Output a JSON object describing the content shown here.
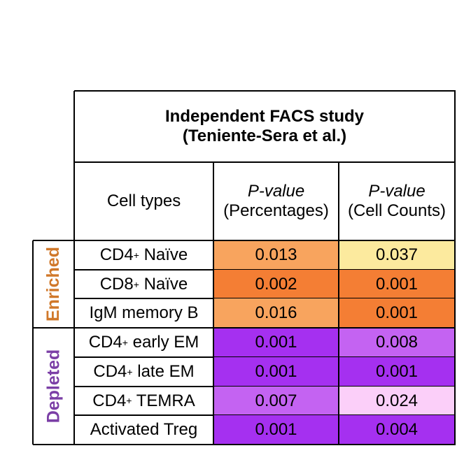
{
  "chart_data": {
    "type": "table",
    "title_line1": "Independent FACS study",
    "title_line2": "(Teniente-Sera et al.)",
    "columns": [
      {
        "key": "cell_types",
        "label": "Cell types"
      },
      {
        "key": "pct",
        "label_italic": "P-value",
        "label_sub": "(Percentages)"
      },
      {
        "key": "cnt",
        "label_italic": "P-value",
        "label_sub": "(Cell Counts)"
      }
    ],
    "groups": [
      {
        "label": "Enriched",
        "color": "#d0782a",
        "rows": [
          {
            "name": "CD4",
            "sup": "+",
            "rest": " Naïve",
            "pct": "0.013",
            "cnt": "0.037",
            "pct_color": "#f8a45e",
            "cnt_color": "#fcea9e"
          },
          {
            "name": "CD8",
            "sup": "+",
            "rest": " Naïve",
            "pct": "0.002",
            "cnt": "0.001",
            "pct_color": "#f47e34",
            "cnt_color": "#f47e34"
          },
          {
            "name": "IgM memory B",
            "sup": "",
            "rest": "",
            "pct": "0.016",
            "cnt": "0.001",
            "pct_color": "#f8a45e",
            "cnt_color": "#f47e34"
          }
        ]
      },
      {
        "label": "Depleted",
        "color": "#7b3fa6",
        "rows": [
          {
            "name": "CD4",
            "sup": "+",
            "rest": " early EM",
            "pct": "0.001",
            "cnt": "0.008",
            "pct_color": "#a530f0",
            "cnt_color": "#c463f2"
          },
          {
            "name": "CD4",
            "sup": "+",
            "rest": " late EM",
            "pct": "0.001",
            "cnt": "0.001",
            "pct_color": "#a530f0",
            "cnt_color": "#a530f0"
          },
          {
            "name": "CD4",
            "sup": "+",
            "rest": " TEMRA",
            "pct": "0.007",
            "cnt": "0.024",
            "pct_color": "#c463f2",
            "cnt_color": "#fbcff9"
          },
          {
            "name": "Activated Treg",
            "sup": "",
            "rest": "",
            "pct": "0.001",
            "cnt": "0.004",
            "pct_color": "#a530f0",
            "cnt_color": "#a530f0"
          }
        ]
      }
    ]
  }
}
